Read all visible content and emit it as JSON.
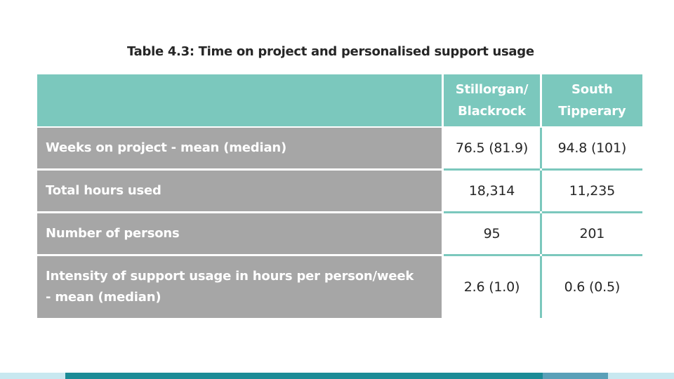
{
  "caption": "Table 4.3: Time on project and personalised support usage",
  "table": {
    "columns": [
      "Stillorgan/\nBlackrock",
      "South\nTipperary"
    ],
    "column_lines": [
      [
        "Stillorgan/",
        "Blackrock"
      ],
      [
        "South",
        "Tipperary"
      ]
    ],
    "rows": [
      {
        "label": "Weeks on project - mean (median)",
        "values": [
          "76.5 (81.9)",
          "94.8 (101)"
        ]
      },
      {
        "label": "Total hours used",
        "values": [
          "18,314",
          "11,235"
        ]
      },
      {
        "label": "Number of persons",
        "values": [
          "95",
          "201"
        ]
      },
      {
        "label_lines": [
          "Intensity of support usage in hours per person/week",
          "- mean (median)"
        ],
        "values": [
          "2.6 (1.0)",
          "0.6 (0.5)"
        ]
      }
    ]
  },
  "colors": {
    "header": "#7bc8bd",
    "label_bg": "#a6a6a6",
    "footer_main": "#1b8b96"
  }
}
